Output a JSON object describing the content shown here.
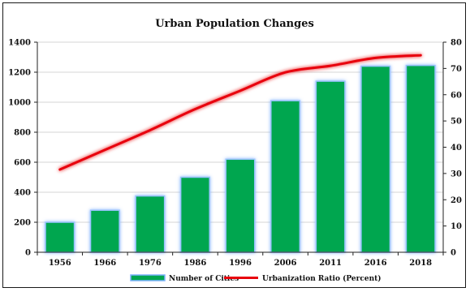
{
  "chart_data": {
    "type": "bar",
    "title": "Urban Population Changes",
    "categories": [
      "1956",
      "1966",
      "1976",
      "1986",
      "1996",
      "2006",
      "2011",
      "2016",
      "2018"
    ],
    "series": [
      {
        "name": "Number of Cities",
        "type": "bar",
        "axis": "left",
        "color": "#00a650",
        "values": [
          200,
          280,
          375,
          500,
          620,
          1010,
          1140,
          1240,
          1245
        ]
      },
      {
        "name": "Urbanization Ratio (Percent)",
        "type": "line",
        "axis": "right",
        "color": "#e8000b",
        "values": [
          31.5,
          39,
          46.5,
          54.5,
          61.5,
          68.5,
          71,
          74,
          75
        ]
      }
    ],
    "y_left": {
      "min": 0,
      "max": 1400,
      "ticks": [
        0,
        200,
        400,
        600,
        800,
        1000,
        1200,
        1400
      ]
    },
    "y_right": {
      "min": 0,
      "max": 80,
      "ticks": [
        0,
        10,
        20,
        30,
        40,
        50,
        60,
        70,
        80
      ]
    },
    "grid": true,
    "legend_position": "bottom"
  }
}
